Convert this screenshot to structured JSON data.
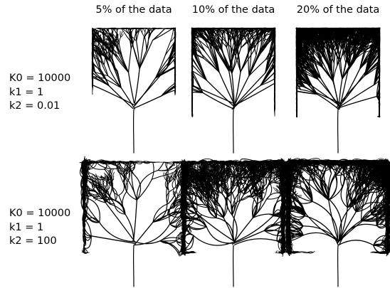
{
  "columns": [
    {
      "label": "5% of the data",
      "density": 1
    },
    {
      "label": "10% of the data",
      "density": 2
    },
    {
      "label": "20% of the data",
      "density": 3
    }
  ],
  "rows": [
    {
      "lines": [
        "K0 = 10000",
        "k1 = 1",
        "k2 = 0.01"
      ],
      "style": "straight"
    },
    {
      "lines": [
        "K0 = 10000",
        "k1 = 1",
        "k2 = 100"
      ],
      "style": "curly"
    }
  ],
  "colors": {
    "stroke": "#000000",
    "background": "#ffffff"
  }
}
